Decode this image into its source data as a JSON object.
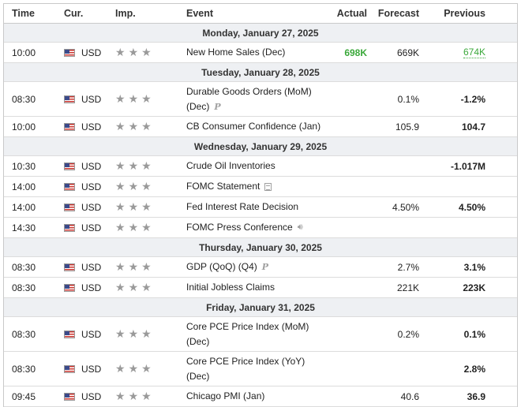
{
  "headers": {
    "time": "Time",
    "cur": "Cur.",
    "imp": "Imp.",
    "event": "Event",
    "actual": "Actual",
    "forecast": "Forecast",
    "previous": "Previous"
  },
  "days": [
    {
      "label": "Monday, January 27, 2025",
      "events": [
        {
          "time": "10:00",
          "cur": "USD",
          "event": [
            "New Home Sales (Dec)"
          ],
          "actual": "698K",
          "forecast": "669K",
          "previous": "674K"
        }
      ]
    },
    {
      "label": "Tuesday, January 28, 2025",
      "events": [
        {
          "time": "08:30",
          "cur": "USD",
          "event": [
            "Durable Goods Orders (MoM)",
            "(Dec)"
          ],
          "actual": "",
          "forecast": "0.1%",
          "previous": "-1.2%"
        },
        {
          "time": "10:00",
          "cur": "USD",
          "event": [
            "CB Consumer Confidence (Jan)"
          ],
          "actual": "",
          "forecast": "105.9",
          "previous": "104.7"
        }
      ]
    },
    {
      "label": "Wednesday, January 29, 2025",
      "events": [
        {
          "time": "10:30",
          "cur": "USD",
          "event": [
            "Crude Oil Inventories"
          ],
          "actual": "",
          "forecast": "",
          "previous": "-1.017M"
        },
        {
          "time": "14:00",
          "cur": "USD",
          "event": [
            "FOMC Statement"
          ],
          "actual": "",
          "forecast": "",
          "previous": ""
        },
        {
          "time": "14:00",
          "cur": "USD",
          "event": [
            "Fed Interest Rate Decision"
          ],
          "actual": "",
          "forecast": "4.50%",
          "previous": "4.50%"
        },
        {
          "time": "14:30",
          "cur": "USD",
          "event": [
            "FOMC Press Conference"
          ],
          "actual": "",
          "forecast": "",
          "previous": ""
        }
      ]
    },
    {
      "label": "Thursday, January 30, 2025",
      "events": [
        {
          "time": "08:30",
          "cur": "USD",
          "event": [
            "GDP (QoQ) (Q4)"
          ],
          "actual": "",
          "forecast": "2.7%",
          "previous": "3.1%"
        },
        {
          "time": "08:30",
          "cur": "USD",
          "event": [
            "Initial Jobless Claims"
          ],
          "actual": "",
          "forecast": "221K",
          "previous": "223K"
        }
      ]
    },
    {
      "label": "Friday, January 31, 2025",
      "events": [
        {
          "time": "08:30",
          "cur": "USD",
          "event": [
            "Core PCE Price Index (MoM)",
            "(Dec)"
          ],
          "actual": "",
          "forecast": "0.2%",
          "previous": "0.1%"
        },
        {
          "time": "08:30",
          "cur": "USD",
          "event": [
            "Core PCE Price Index (YoY)",
            "(Dec)"
          ],
          "actual": "",
          "forecast": "",
          "previous": "2.8%"
        },
        {
          "time": "09:45",
          "cur": "USD",
          "event": [
            "Chicago PMI (Jan)"
          ],
          "actual": "",
          "forecast": "40.6",
          "previous": "36.9"
        }
      ]
    }
  ],
  "icons": {
    "flag": "us-flag-icon",
    "importance": "star-icon",
    "preliminary": "p-icon",
    "document": "document-icon",
    "speaker": "speaker-icon"
  },
  "colors": {
    "actual_better": "#3aa83a",
    "day_background": "#eef0f3"
  },
  "importance_stars": 3
}
